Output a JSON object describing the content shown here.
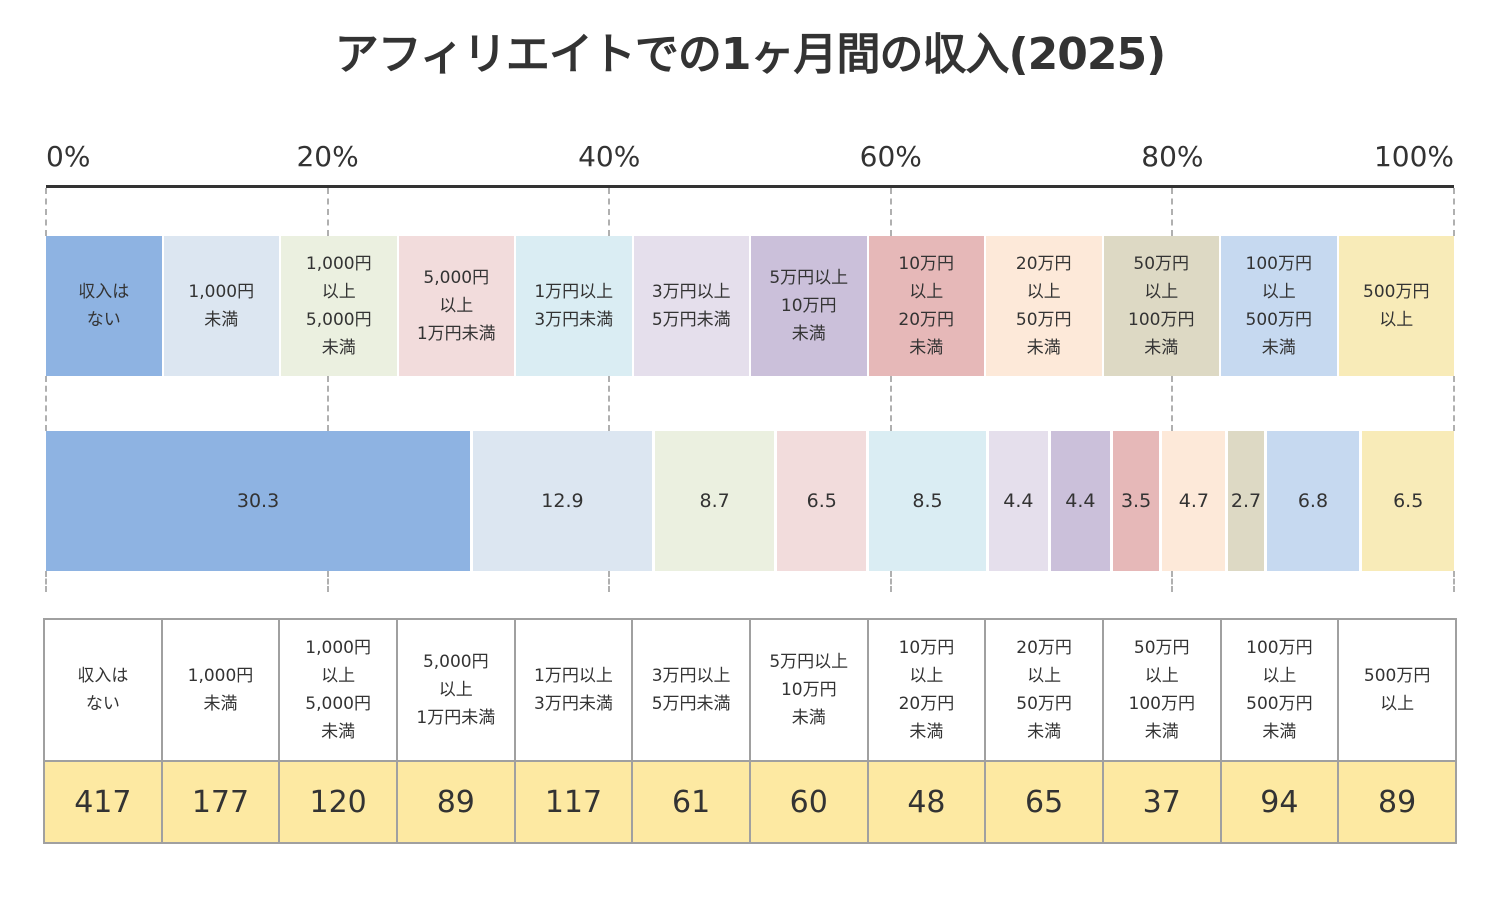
{
  "title": "アフィリエイトでの1ヶ月間の収入(2025)",
  "chart_data": {
    "type": "bar",
    "subtype": "100% stacked horizontal bar",
    "title": "アフィリエイトでの1ヶ月間の収入(2025)",
    "xlabel": "",
    "ylabel": "",
    "xlim": [
      0,
      100
    ],
    "x_ticks": [
      "0%",
      "20%",
      "40%",
      "60%",
      "80%",
      "100%"
    ],
    "grid": true,
    "legend_position": "top",
    "categories": [
      "収入は\nない",
      "1,000円\n未満",
      "1,000円\n以上\n5,000円\n未満",
      "5,000円\n以上\n1万円未満",
      "1万円以上\n3万円未満",
      "3万円以上\n5万円未満",
      "5万円以上\n10万円\n未満",
      "10万円\n以上\n20万円\n未満",
      "20万円\n以上\n50万円\n未満",
      "50万円\n以上\n100万円\n未満",
      "100万円\n以上\n500万円\n未満",
      "500万円\n以上"
    ],
    "series": [
      {
        "name": "percent",
        "values": [
          30.3,
          12.9,
          8.7,
          6.5,
          8.5,
          4.4,
          4.4,
          3.5,
          4.7,
          2.7,
          6.8,
          6.5
        ],
        "labels": [
          "30.3",
          "12.9",
          "8.7",
          "6.5",
          "8.5",
          "4.4",
          "4.4",
          "3.5",
          "4.7",
          "2.7",
          "6.8",
          "6.5"
        ]
      }
    ],
    "colors": [
      "#8eb3e2",
      "#dce6f1",
      "#ebf0e0",
      "#f2dcdc",
      "#daedf3",
      "#e5dfec",
      "#cbc0da",
      "#e6b8b8",
      "#fde9d9",
      "#ddd9c4",
      "#c6d9f0",
      "#f8ebb8"
    ],
    "table": {
      "headers": [
        "収入は\nない",
        "1,000円\n未満",
        "1,000円\n以上\n5,000円\n未満",
        "5,000円\n以上\n1万円未満",
        "1万円以上\n3万円未満",
        "3万円以上\n5万円未満",
        "5万円以上\n10万円\n未満",
        "10万円\n以上\n20万円\n未満",
        "20万円\n以上\n50万円\n未満",
        "50万円\n以上\n100万円\n未満",
        "100万円\n以上\n500万円\n未満",
        "500万円\n以上"
      ],
      "counts": [
        "417",
        "177",
        "120",
        "89",
        "117",
        "61",
        "60",
        "48",
        "65",
        "37",
        "94",
        "89"
      ]
    }
  }
}
